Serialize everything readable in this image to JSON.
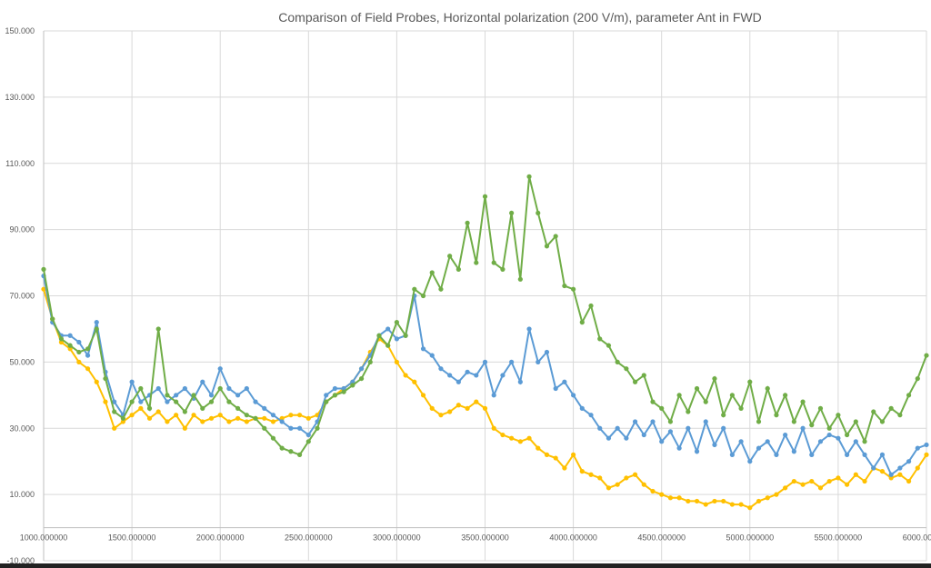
{
  "chart_data": {
    "type": "line",
    "title": "Comparison of Field Probes, Horizontal polarization (200 V/m), parameter Ant in FWD",
    "xlabel": "",
    "ylabel": "",
    "xlim": [
      1000,
      6000
    ],
    "ylim": [
      -10,
      150
    ],
    "grid": true,
    "legend": "none",
    "x_ticks": [
      "1000.000000",
      "1500.000000",
      "2000.000000",
      "2500.000000",
      "3000.000000",
      "3500.000000",
      "4000.000000",
      "4500.000000",
      "5000.000000",
      "5500.000000",
      "6000.000000"
    ],
    "y_ticks": [
      "150.000",
      "130.000",
      "110.000",
      "90.000",
      "70.000",
      "50.000",
      "30.000",
      "10.000",
      "-10.000"
    ],
    "x": [
      1000,
      1050,
      1100,
      1150,
      1200,
      1250,
      1300,
      1350,
      1400,
      1450,
      1500,
      1550,
      1600,
      1650,
      1700,
      1750,
      1800,
      1850,
      1900,
      1950,
      2000,
      2050,
      2100,
      2150,
      2200,
      2250,
      2300,
      2350,
      2400,
      2450,
      2500,
      2550,
      2600,
      2650,
      2700,
      2750,
      2800,
      2850,
      2900,
      2950,
      3000,
      3050,
      3100,
      3150,
      3200,
      3250,
      3300,
      3350,
      3400,
      3450,
      3500,
      3550,
      3600,
      3650,
      3700,
      3750,
      3800,
      3850,
      3900,
      3950,
      4000,
      4050,
      4100,
      4150,
      4200,
      4250,
      4300,
      4350,
      4400,
      4450,
      4500,
      4550,
      4600,
      4650,
      4700,
      4750,
      4800,
      4850,
      4900,
      4950,
      5000,
      5050,
      5100,
      5150,
      5200,
      5250,
      5300,
      5350,
      5400,
      5450,
      5500,
      5550,
      5600,
      5650,
      5700,
      5750,
      5800,
      5850,
      5900,
      5950,
      6000
    ],
    "series": [
      {
        "color": "#ffc000",
        "values": [
          72,
          63,
          56,
          54,
          50,
          48,
          44,
          38,
          30,
          32,
          34,
          36,
          33,
          35,
          32,
          34,
          30,
          34,
          32,
          33,
          34,
          32,
          33,
          32,
          33,
          33,
          32,
          33,
          34,
          34,
          33,
          34,
          38,
          40,
          42,
          44,
          48,
          53,
          57,
          55,
          50,
          46,
          44,
          40,
          36,
          34,
          35,
          37,
          36,
          38,
          36,
          30,
          28,
          27,
          26,
          27,
          24,
          22,
          21,
          18,
          22,
          17,
          16,
          15,
          12,
          13,
          15,
          16,
          13,
          11,
          10,
          9,
          9,
          8,
          8,
          7,
          8,
          8,
          7,
          7,
          6,
          8,
          9,
          10,
          12,
          14,
          13,
          14,
          12,
          14,
          15,
          13,
          16,
          14,
          18,
          17,
          15,
          16,
          14,
          18,
          22
        ]
      },
      {
        "color": "#5b9bd5",
        "values": [
          76,
          62,
          58,
          58,
          56,
          52,
          62,
          47,
          38,
          34,
          44,
          38,
          40,
          42,
          38,
          40,
          42,
          39,
          44,
          40,
          48,
          42,
          40,
          42,
          38,
          36,
          34,
          32,
          30,
          30,
          28,
          32,
          40,
          42,
          42,
          44,
          48,
          52,
          58,
          60,
          57,
          58,
          70,
          54,
          52,
          48,
          46,
          44,
          47,
          46,
          50,
          40,
          46,
          50,
          44,
          60,
          50,
          53,
          42,
          44,
          40,
          36,
          34,
          30,
          27,
          30,
          27,
          32,
          28,
          32,
          26,
          29,
          24,
          30,
          23,
          32,
          25,
          30,
          22,
          26,
          20,
          24,
          26,
          22,
          28,
          23,
          30,
          22,
          26,
          28,
          27,
          22,
          26,
          22,
          18,
          22,
          16,
          18,
          20,
          24,
          25
        ]
      },
      {
        "color": "#70ad47",
        "values": [
          78,
          63,
          57,
          55,
          53,
          54,
          60,
          45,
          35,
          33,
          38,
          42,
          36,
          60,
          40,
          38,
          35,
          40,
          36,
          38,
          42,
          38,
          36,
          34,
          33,
          30,
          27,
          24,
          23,
          22,
          26,
          30,
          38,
          40,
          41,
          43,
          45,
          50,
          58,
          55,
          62,
          58,
          72,
          70,
          77,
          72,
          82,
          78,
          92,
          80,
          100,
          80,
          78,
          95,
          75,
          106,
          95,
          85,
          88,
          73,
          72,
          62,
          67,
          57,
          55,
          50,
          48,
          44,
          46,
          38,
          36,
          32,
          40,
          35,
          42,
          38,
          45,
          34,
          40,
          36,
          44,
          32,
          42,
          34,
          40,
          32,
          38,
          31,
          36,
          30,
          34,
          28,
          32,
          26,
          35,
          32,
          36,
          34,
          40,
          45,
          52
        ]
      }
    ]
  }
}
